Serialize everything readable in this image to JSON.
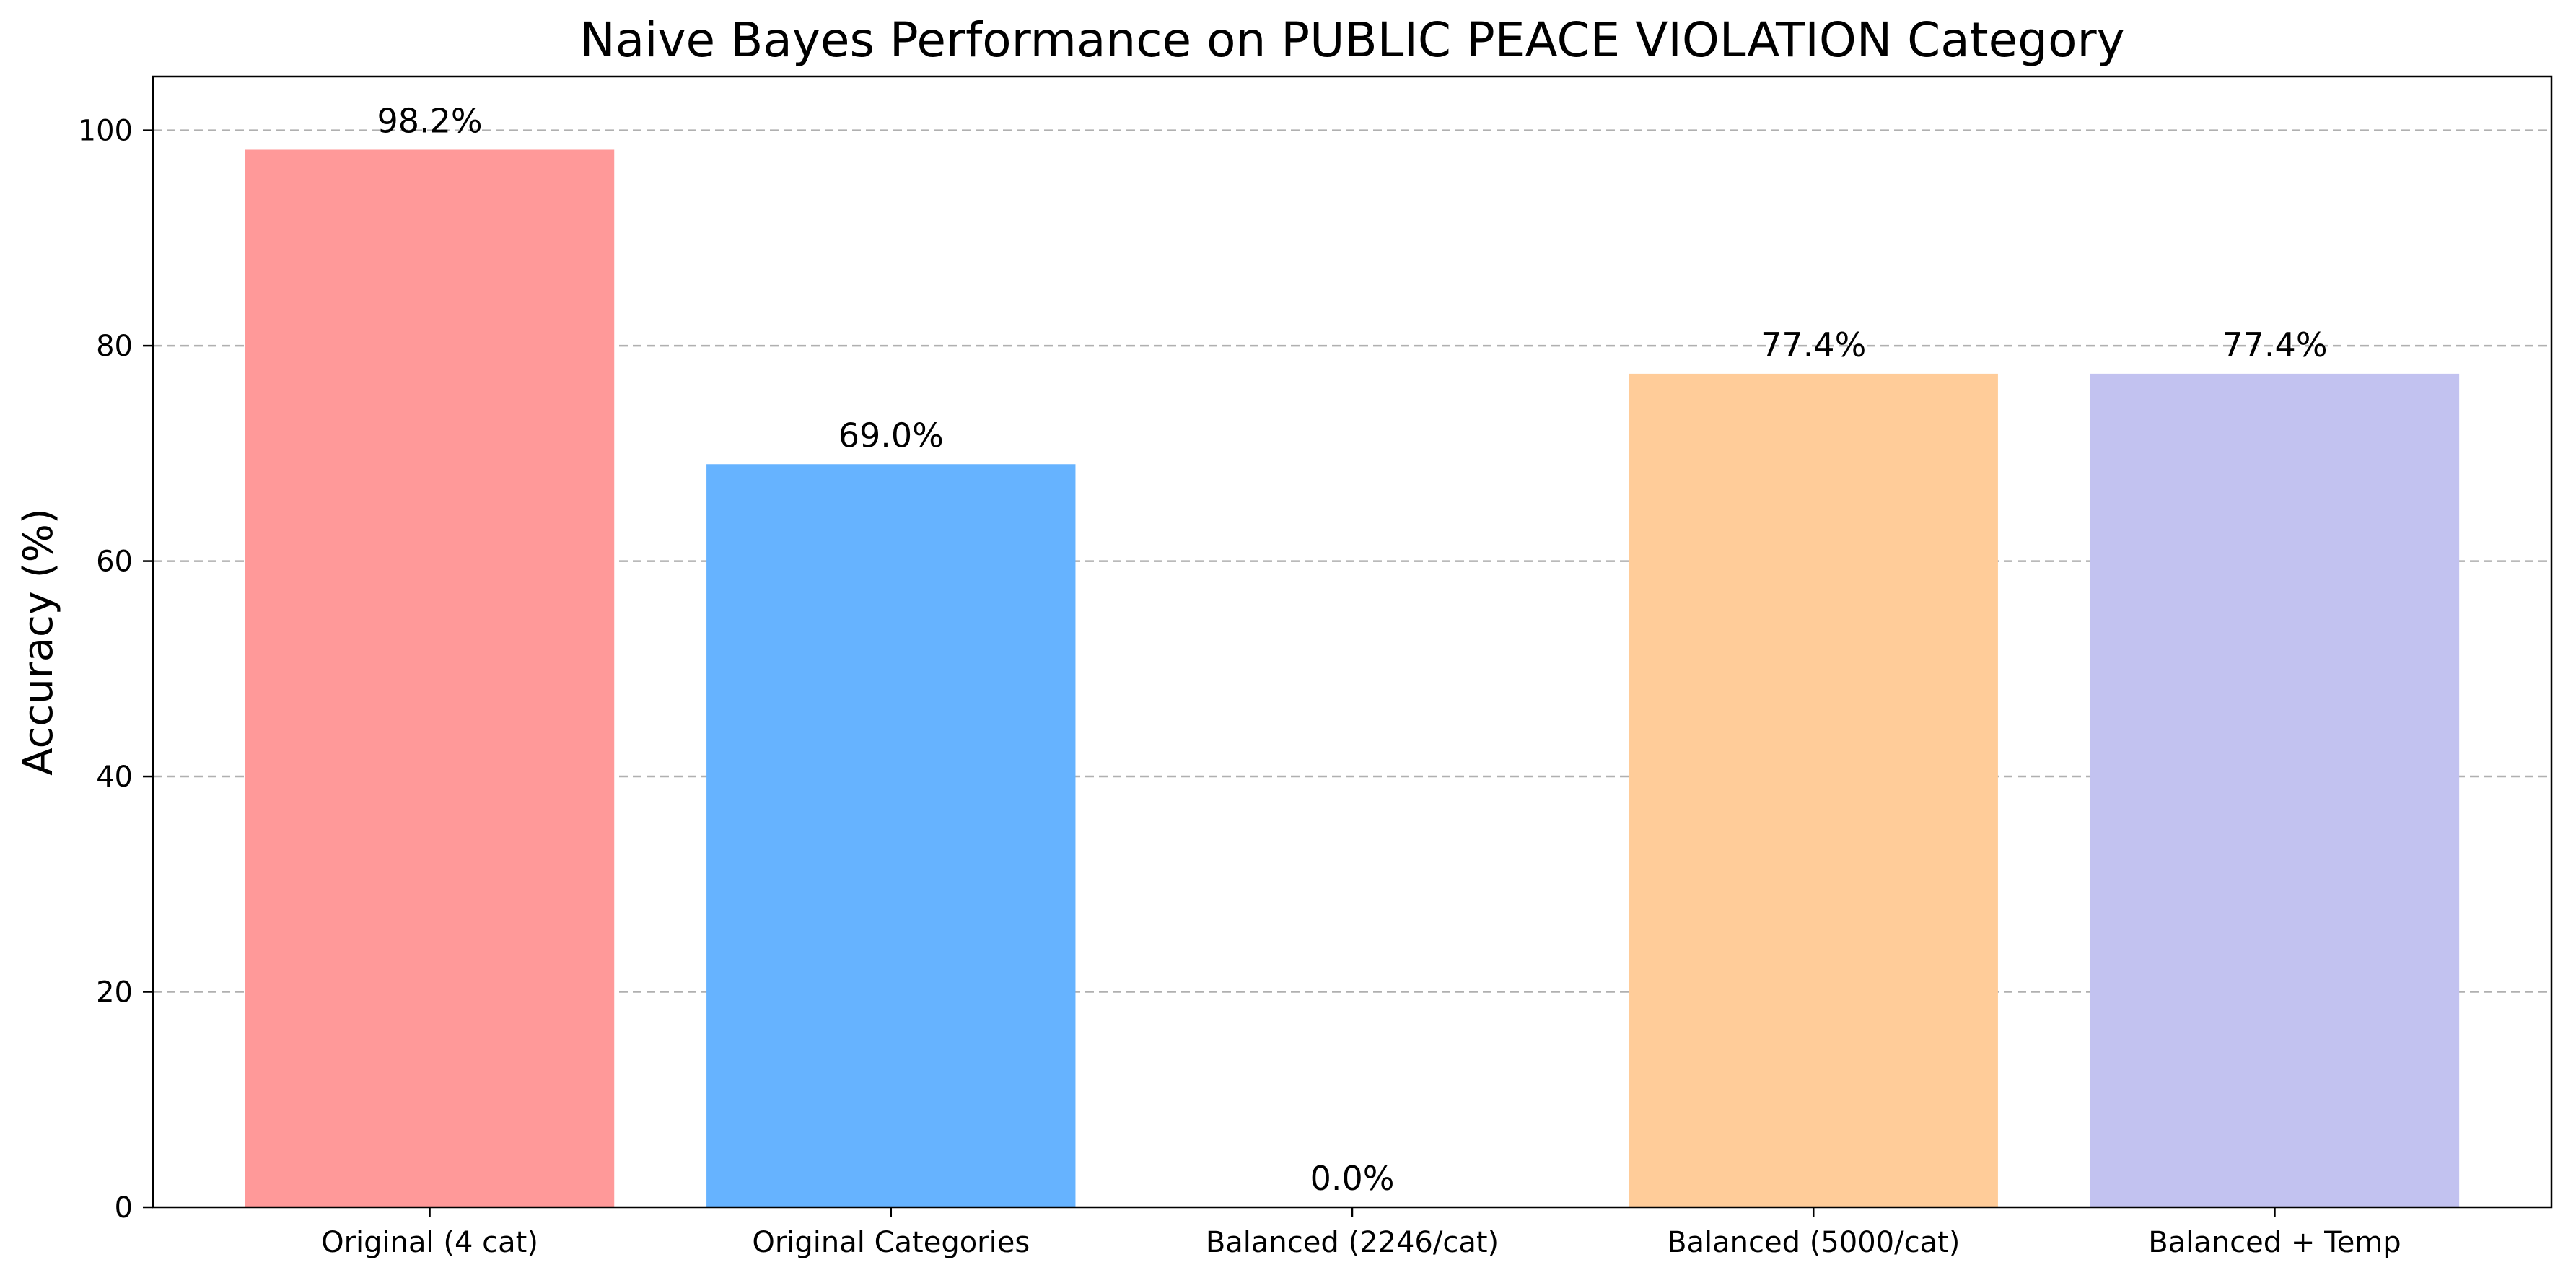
{
  "chart_data": {
    "type": "bar",
    "title": "Naive Bayes Performance on PUBLIC PEACE VIOLATION Category",
    "xlabel": "",
    "ylabel": "Accuracy (%)",
    "categories": [
      "Original (4 cat)",
      "Original Categories",
      "Balanced (2246/cat)",
      "Balanced (5000/cat)",
      "Balanced + Temp"
    ],
    "values": [
      98.2,
      69.0,
      0.0,
      77.4,
      77.4
    ],
    "value_labels": [
      "98.2%",
      "69.0%",
      "0.0%",
      "77.4%",
      "77.4%"
    ],
    "colors": [
      "#ff9999",
      "#66b3ff",
      "#99ff99",
      "#ffcc99",
      "#c2c2f0"
    ],
    "ylim": [
      0,
      105
    ],
    "yticks": [
      0,
      20,
      40,
      60,
      80,
      100
    ],
    "grid": "y-dashed",
    "legend": "none"
  }
}
